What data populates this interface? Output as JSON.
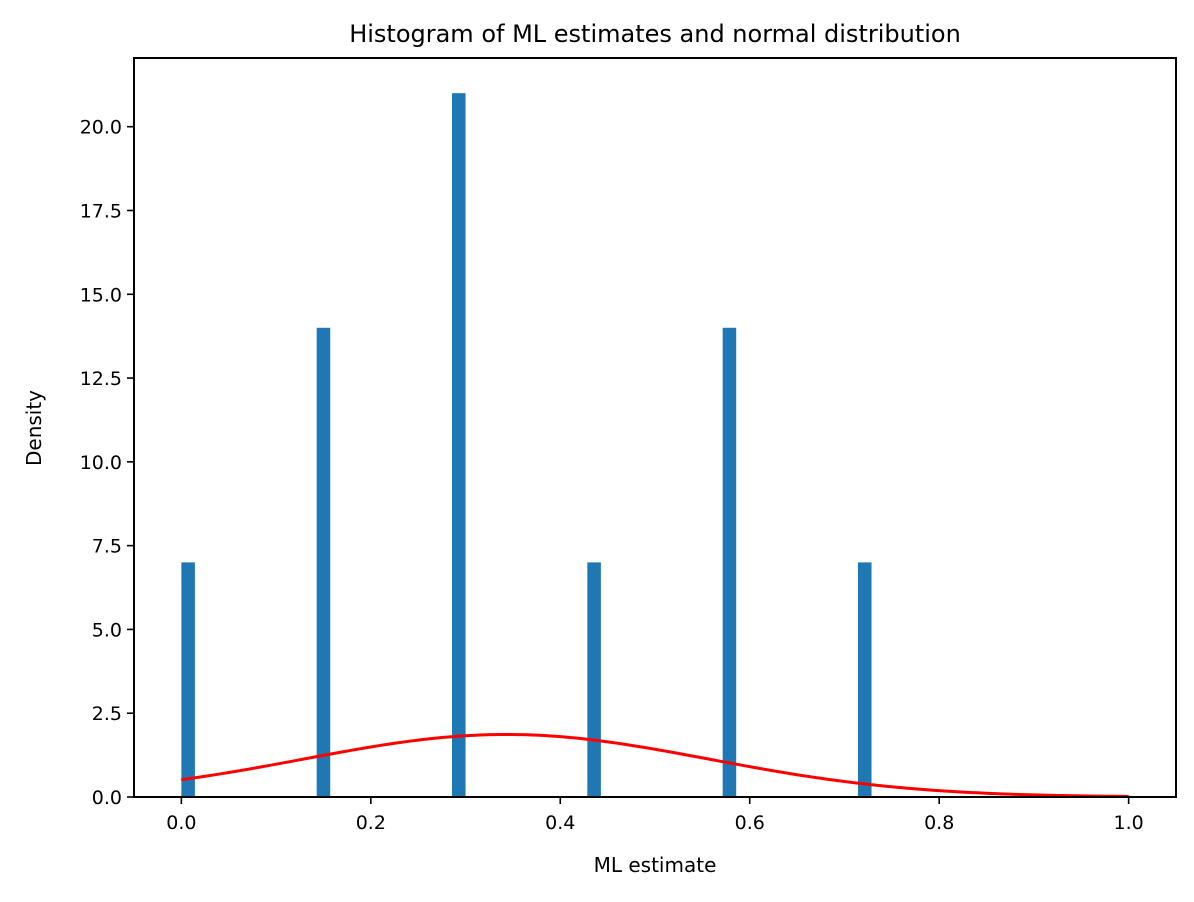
{
  "chart_data": {
    "type": "bar",
    "title": "Histogram of ML estimates and normal distribution",
    "xlabel": "ML estimate",
    "ylabel": "Density",
    "xlim": [
      -0.05,
      1.05
    ],
    "ylim": [
      0,
      22.05
    ],
    "xticks": [
      0.0,
      0.2,
      0.4,
      0.6,
      0.8,
      1.0
    ],
    "xtick_labels": [
      "0.0",
      "0.2",
      "0.4",
      "0.6",
      "0.8",
      "1.0"
    ],
    "yticks": [
      0.0,
      2.5,
      5.0,
      7.5,
      10.0,
      12.5,
      15.0,
      17.5,
      20.0
    ],
    "ytick_labels": [
      "0.0",
      "2.5",
      "5.0",
      "7.5",
      "10.0",
      "12.5",
      "15.0",
      "17.5",
      "20.0"
    ],
    "grid": false,
    "bin_width": 0.0142857,
    "histogram": {
      "name": "ML estimates",
      "color": "#1f77b4",
      "bins": [
        {
          "left": 0.0,
          "density": 7
        },
        {
          "left": 0.142857,
          "density": 14
        },
        {
          "left": 0.285714,
          "density": 21
        },
        {
          "left": 0.428571,
          "density": 7
        },
        {
          "left": 0.571429,
          "density": 14
        },
        {
          "left": 0.714286,
          "density": 7
        }
      ]
    },
    "normal_curve": {
      "name": "normal distribution",
      "color": "#ff0000",
      "mean": 0.342857,
      "std": 0.213809,
      "x_range": [
        0.0,
        1.0
      ]
    }
  }
}
